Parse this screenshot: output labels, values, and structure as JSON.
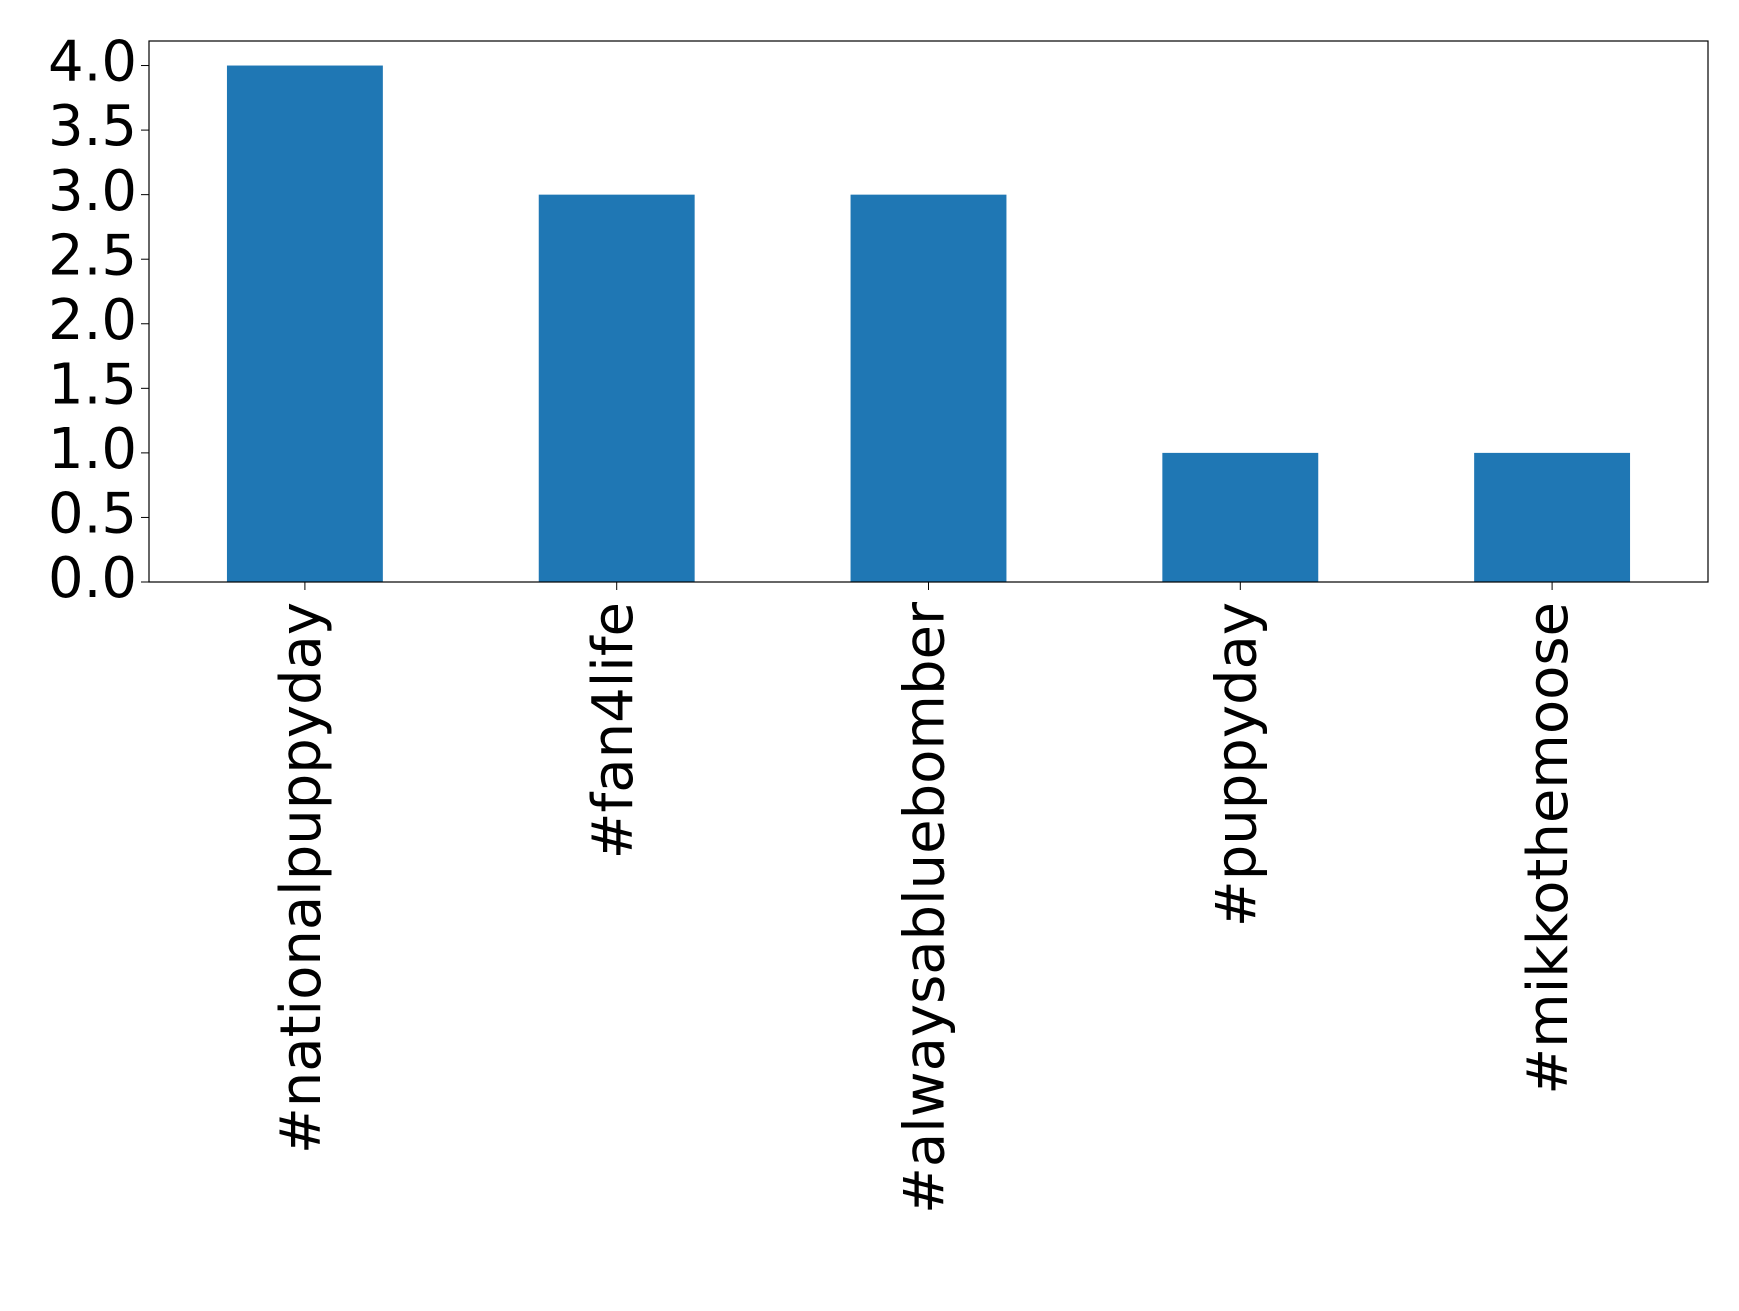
{
  "chart_data": {
    "type": "bar",
    "categories": [
      "#nationalpuppyday",
      "#fan4life",
      "#alwaysabluebomber",
      "#puppyday",
      "#mikkothemoose"
    ],
    "values": [
      4,
      3,
      3,
      1,
      1
    ],
    "color": "#1f77b4",
    "ylim": [
      0,
      4.19
    ],
    "yticks": [
      {
        "value": 0,
        "label": "0.0"
      },
      {
        "value": 0.5,
        "label": "0.5"
      },
      {
        "value": 1,
        "label": "1.0"
      },
      {
        "value": 1.5,
        "label": "1.5"
      },
      {
        "value": 2,
        "label": "2.0"
      },
      {
        "value": 2.5,
        "label": "2.5"
      },
      {
        "value": 3,
        "label": "3.0"
      },
      {
        "value": 3.5,
        "label": "3.5"
      },
      {
        "value": 4,
        "label": "4.0"
      }
    ],
    "grid": false
  }
}
